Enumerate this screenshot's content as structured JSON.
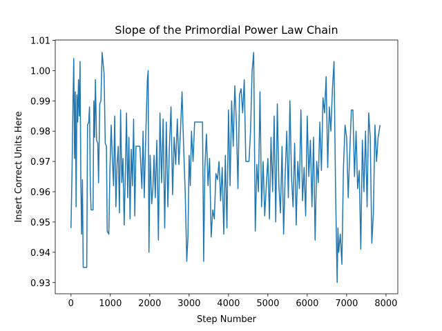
{
  "chart_data": {
    "type": "line",
    "title": "Slope of the Primordial Power Law Chain",
    "x_label": "Step Number",
    "y_label": "Insert Correct Units Here",
    "xlim": [
      -400,
      8300
    ],
    "ylim": [
      0.9263,
      1.0101
    ],
    "xticks": [
      0,
      1000,
      2000,
      3000,
      4000,
      5000,
      6000,
      7000,
      8000
    ],
    "yticks": [
      0.93,
      0.94,
      0.95,
      0.96,
      0.97,
      0.98,
      0.99,
      {
        "value": 1,
        "label": "1.00"
      },
      1.01
    ],
    "grid": false,
    "series": [
      {
        "color": "#1f77b4",
        "x": [
          0,
          25,
          50,
          70,
          90,
          110,
          130,
          150,
          170,
          190,
          210,
          230,
          250,
          270,
          290,
          310,
          400,
          420,
          450,
          470,
          490,
          510,
          560,
          580,
          600,
          620,
          650,
          680,
          700,
          730,
          760,
          790,
          840,
          870,
          900,
          920,
          960,
          990,
          1020,
          1050,
          1080,
          1110,
          1140,
          1170,
          1200,
          1230,
          1260,
          1290,
          1320,
          1350,
          1380,
          1410,
          1440,
          1470,
          1500,
          1530,
          1560,
          1590,
          1620,
          1650,
          1700,
          1750,
          1800,
          1830,
          1860,
          1900,
          1940,
          1960,
          1980,
          2010,
          2050,
          2080,
          2110,
          2140,
          2180,
          2220,
          2260,
          2300,
          2340,
          2380,
          2420,
          2460,
          2500,
          2540,
          2580,
          2620,
          2660,
          2700,
          2740,
          2780,
          2820,
          2860,
          2900,
          2940,
          2970,
          3000,
          3030,
          3060,
          3100,
          3140,
          3200,
          3340,
          3370,
          3400,
          3440,
          3480,
          3520,
          3560,
          3600,
          3640,
          3680,
          3720,
          3760,
          3800,
          3840,
          3880,
          3920,
          3960,
          4000,
          4040,
          4080,
          4120,
          4160,
          4200,
          4240,
          4280,
          4320,
          4360,
          4400,
          4440,
          4520,
          4560,
          4600,
          4640,
          4680,
          4720,
          4760,
          4800,
          4840,
          4880,
          4920,
          4960,
          5000,
          5040,
          5080,
          5120,
          5160,
          5200,
          5240,
          5280,
          5320,
          5360,
          5400,
          5440,
          5480,
          5520,
          5560,
          5600,
          5640,
          5680,
          5720,
          5760,
          5800,
          5840,
          5880,
          5920,
          5960,
          6000,
          6040,
          6080,
          6120,
          6160,
          6200,
          6240,
          6280,
          6320,
          6360,
          6400,
          6440,
          6480,
          6520,
          6560,
          6600,
          6640,
          6680,
          6720,
          6760,
          6780,
          6800,
          6840,
          6880,
          6920,
          6960,
          7000,
          7040,
          7080,
          7120,
          7160,
          7200,
          7240,
          7280,
          7320,
          7360,
          7400,
          7440,
          7480,
          7520,
          7560,
          7600,
          7640,
          7680,
          7720,
          7760,
          7800,
          7850
        ],
        "values": [
          0.948,
          0.966,
          0.989,
          1.004,
          0.971,
          0.993,
          0.955,
          0.992,
          0.983,
          0.997,
          0.985,
          1.003,
          0.963,
          0.946,
          0.964,
          0.935,
          0.935,
          0.982,
          0.983,
          0.988,
          0.962,
          0.954,
          0.954,
          0.99,
          0.978,
          0.997,
          0.977,
          0.976,
          0.963,
          0.989,
          0.99,
          1.006,
          0.999,
          0.976,
          0.975,
          0.947,
          0.946,
          0.968,
          0.982,
          0.971,
          0.962,
          0.985,
          0.955,
          0.969,
          0.975,
          0.953,
          0.987,
          0.963,
          0.971,
          0.949,
          0.966,
          0.986,
          0.958,
          0.978,
          0.951,
          0.974,
          0.962,
          0.984,
          0.952,
          0.975,
          0.975,
          0.975,
          0.961,
          0.98,
          0.958,
          0.979,
          0.997,
          1.0,
          0.94,
          0.972,
          0.956,
          0.961,
          0.972,
          0.958,
          0.977,
          0.944,
          0.986,
          0.963,
          0.984,
          0.948,
          0.983,
          0.955,
          0.975,
          0.988,
          0.959,
          0.978,
          0.969,
          0.984,
          0.969,
          0.98,
          0.993,
          0.975,
          0.96,
          0.937,
          0.945,
          0.972,
          0.962,
          0.98,
          0.97,
          0.983,
          0.983,
          0.983,
          0.937,
          0.968,
          0.979,
          0.962,
          0.971,
          0.945,
          0.954,
          0.951,
          0.966,
          0.964,
          0.97,
          0.957,
          0.968,
          0.946,
          0.972,
          0.948,
          0.987,
          0.962,
          0.99,
          0.975,
          0.995,
          0.983,
          0.961,
          0.992,
          0.994,
          0.986,
          0.997,
          0.97,
          0.97,
          0.98,
          1.0,
          1.006,
          0.947,
          0.969,
          0.96,
          0.993,
          0.955,
          0.97,
          0.952,
          0.962,
          0.971,
          0.951,
          0.978,
          0.96,
          0.985,
          0.95,
          0.989,
          0.962,
          0.953,
          0.975,
          0.946,
          0.966,
          0.98,
          0.958,
          0.99,
          0.965,
          0.955,
          0.976,
          0.949,
          0.97,
          0.961,
          0.987,
          0.957,
          0.968,
          0.952,
          0.985,
          0.965,
          0.977,
          0.955,
          0.978,
          0.944,
          0.97,
          0.963,
          0.983,
          0.967,
          0.991,
          0.986,
          0.998,
          0.968,
          0.988,
          0.98,
          0.994,
          1.003,
          0.96,
          0.93,
          0.948,
          0.94,
          0.946,
          0.936,
          0.968,
          0.982,
          0.978,
          0.958,
          0.973,
          0.987,
          0.987,
          0.965,
          0.98,
          0.961,
          0.967,
          0.941,
          0.977,
          0.96,
          0.98,
          0.955,
          0.986,
          0.978,
          0.943,
          0.953,
          0.982,
          0.97,
          0.978,
          0.982
        ]
      }
    ]
  }
}
